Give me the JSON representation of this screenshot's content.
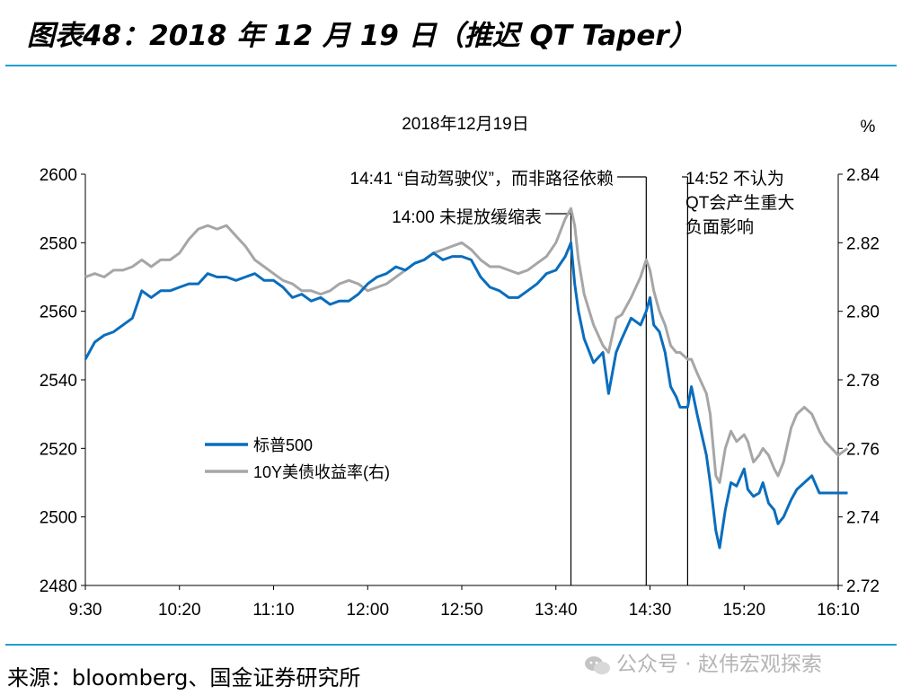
{
  "figure_title": "图表48：2018 年 12 月 19 日（推迟 QT Taper）",
  "source": "来源：bloomberg、国金证券研究所",
  "watermark": "公众号 · 赵伟宏观探索",
  "watermark_icon": "wechat-icon",
  "colors": {
    "sp500": "#0a6dbd",
    "treasury": "#a6a6a6",
    "rule": "#1fa0d2"
  },
  "chart_data": {
    "type": "line",
    "title": "2018年12月19日",
    "y2_unit": "%",
    "x_ticks": [
      "9:30",
      "10:20",
      "11:10",
      "12:00",
      "12:50",
      "13:40",
      "14:30",
      "15:20",
      "16:10"
    ],
    "y_left": {
      "ticks": [
        2480,
        2500,
        2520,
        2540,
        2560,
        2580,
        2600
      ],
      "range": [
        2480,
        2600
      ]
    },
    "y_right": {
      "ticks": [
        "2.72",
        "2.74",
        "2.76",
        "2.78",
        "2.80",
        "2.82",
        "2.84"
      ],
      "range": [
        2.72,
        2.84
      ]
    },
    "grid": false,
    "legend_position": "lower-left",
    "series": [
      {
        "name": "标普500",
        "axis": "left",
        "points": [
          [
            "9:30",
            2546
          ],
          [
            "9:35",
            2551
          ],
          [
            "9:40",
            2553
          ],
          [
            "9:45",
            2554
          ],
          [
            "9:50",
            2556
          ],
          [
            "9:55",
            2558
          ],
          [
            "10:00",
            2566
          ],
          [
            "10:05",
            2564
          ],
          [
            "10:10",
            2566
          ],
          [
            "10:15",
            2566
          ],
          [
            "10:20",
            2567
          ],
          [
            "10:25",
            2568
          ],
          [
            "10:30",
            2568
          ],
          [
            "10:35",
            2571
          ],
          [
            "10:40",
            2570
          ],
          [
            "10:45",
            2570
          ],
          [
            "10:50",
            2569
          ],
          [
            "10:55",
            2570
          ],
          [
            "11:00",
            2571
          ],
          [
            "11:05",
            2569
          ],
          [
            "11:10",
            2569
          ],
          [
            "11:15",
            2567
          ],
          [
            "11:20",
            2564
          ],
          [
            "11:25",
            2565
          ],
          [
            "11:30",
            2563
          ],
          [
            "11:35",
            2564
          ],
          [
            "11:40",
            2562
          ],
          [
            "11:45",
            2563
          ],
          [
            "11:50",
            2563
          ],
          [
            "11:55",
            2565
          ],
          [
            "12:00",
            2568
          ],
          [
            "12:05",
            2570
          ],
          [
            "12:10",
            2571
          ],
          [
            "12:15",
            2573
          ],
          [
            "12:20",
            2572
          ],
          [
            "12:25",
            2574
          ],
          [
            "12:30",
            2575
          ],
          [
            "12:35",
            2577
          ],
          [
            "12:40",
            2575
          ],
          [
            "12:45",
            2576
          ],
          [
            "12:50",
            2576
          ],
          [
            "12:55",
            2575
          ],
          [
            "13:00",
            2570
          ],
          [
            "13:05",
            2567
          ],
          [
            "13:10",
            2566
          ],
          [
            "13:15",
            2564
          ],
          [
            "13:20",
            2564
          ],
          [
            "13:25",
            2566
          ],
          [
            "13:30",
            2568
          ],
          [
            "13:35",
            2571
          ],
          [
            "13:40",
            2572
          ],
          [
            "13:45",
            2576
          ],
          [
            "13:48",
            2580
          ],
          [
            "13:50",
            2568
          ],
          [
            "13:52",
            2560
          ],
          [
            "13:55",
            2552
          ],
          [
            "14:00",
            2545
          ],
          [
            "14:05",
            2548
          ],
          [
            "14:08",
            2536
          ],
          [
            "14:12",
            2548
          ],
          [
            "14:15",
            2552
          ],
          [
            "14:20",
            2558
          ],
          [
            "14:25",
            2556
          ],
          [
            "14:28",
            2560
          ],
          [
            "14:30",
            2564
          ],
          [
            "14:32",
            2556
          ],
          [
            "14:35",
            2554
          ],
          [
            "14:38",
            2548
          ],
          [
            "14:41",
            2538
          ],
          [
            "14:44",
            2535
          ],
          [
            "14:46",
            2532
          ],
          [
            "14:50",
            2532
          ],
          [
            "14:52",
            2538
          ],
          [
            "14:55",
            2530
          ],
          [
            "15:00",
            2518
          ],
          [
            "15:02",
            2510
          ],
          [
            "15:05",
            2496
          ],
          [
            "15:07",
            2491
          ],
          [
            "15:10",
            2502
          ],
          [
            "15:13",
            2510
          ],
          [
            "15:16",
            2509
          ],
          [
            "15:20",
            2514
          ],
          [
            "15:22",
            2508
          ],
          [
            "15:25",
            2506
          ],
          [
            "15:28",
            2507
          ],
          [
            "15:30",
            2510
          ],
          [
            "15:33",
            2504
          ],
          [
            "15:36",
            2502
          ],
          [
            "15:38",
            2498
          ],
          [
            "15:41",
            2500
          ],
          [
            "15:45",
            2505
          ],
          [
            "15:48",
            2508
          ],
          [
            "15:52",
            2510
          ],
          [
            "15:56",
            2512
          ],
          [
            "16:00",
            2507
          ],
          [
            "16:03",
            2507
          ],
          [
            "16:10",
            2507
          ],
          [
            "16:15",
            2507
          ]
        ]
      },
      {
        "name": "10Y美债收益率(右)",
        "axis": "right",
        "points": [
          [
            "9:30",
            2.81
          ],
          [
            "9:35",
            2.811
          ],
          [
            "9:40",
            2.81
          ],
          [
            "9:45",
            2.812
          ],
          [
            "9:50",
            2.812
          ],
          [
            "9:55",
            2.813
          ],
          [
            "10:00",
            2.815
          ],
          [
            "10:05",
            2.813
          ],
          [
            "10:10",
            2.815
          ],
          [
            "10:15",
            2.815
          ],
          [
            "10:20",
            2.817
          ],
          [
            "10:25",
            2.821
          ],
          [
            "10:30",
            2.824
          ],
          [
            "10:35",
            2.825
          ],
          [
            "10:40",
            2.824
          ],
          [
            "10:45",
            2.825
          ],
          [
            "10:50",
            2.822
          ],
          [
            "10:55",
            2.819
          ],
          [
            "11:00",
            2.815
          ],
          [
            "11:05",
            2.813
          ],
          [
            "11:10",
            2.811
          ],
          [
            "11:15",
            2.809
          ],
          [
            "11:20",
            2.808
          ],
          [
            "11:25",
            2.806
          ],
          [
            "11:30",
            2.806
          ],
          [
            "11:35",
            2.805
          ],
          [
            "11:40",
            2.806
          ],
          [
            "11:45",
            2.808
          ],
          [
            "11:50",
            2.809
          ],
          [
            "11:55",
            2.808
          ],
          [
            "12:00",
            2.806
          ],
          [
            "12:05",
            2.807
          ],
          [
            "12:10",
            2.808
          ],
          [
            "12:15",
            2.81
          ],
          [
            "12:20",
            2.812
          ],
          [
            "12:25",
            2.814
          ],
          [
            "12:30",
            2.815
          ],
          [
            "12:35",
            2.817
          ],
          [
            "12:40",
            2.818
          ],
          [
            "12:45",
            2.819
          ],
          [
            "12:50",
            2.82
          ],
          [
            "12:55",
            2.818
          ],
          [
            "13:00",
            2.815
          ],
          [
            "13:05",
            2.813
          ],
          [
            "13:10",
            2.813
          ],
          [
            "13:15",
            2.812
          ],
          [
            "13:20",
            2.811
          ],
          [
            "13:25",
            2.812
          ],
          [
            "13:30",
            2.814
          ],
          [
            "13:35",
            2.816
          ],
          [
            "13:40",
            2.82
          ],
          [
            "13:45",
            2.827
          ],
          [
            "13:48",
            2.83
          ],
          [
            "13:50",
            2.825
          ],
          [
            "13:52",
            2.815
          ],
          [
            "13:55",
            2.805
          ],
          [
            "14:00",
            2.796
          ],
          [
            "14:05",
            2.79
          ],
          [
            "14:08",
            2.788
          ],
          [
            "14:12",
            2.798
          ],
          [
            "14:15",
            2.799
          ],
          [
            "14:20",
            2.804
          ],
          [
            "14:25",
            2.81
          ],
          [
            "14:28",
            2.815
          ],
          [
            "14:30",
            2.812
          ],
          [
            "14:32",
            2.806
          ],
          [
            "14:35",
            2.8
          ],
          [
            "14:38",
            2.796
          ],
          [
            "14:41",
            2.79
          ],
          [
            "14:44",
            2.788
          ],
          [
            "14:46",
            2.788
          ],
          [
            "14:50",
            2.786
          ],
          [
            "14:52",
            2.786
          ],
          [
            "14:55",
            2.782
          ],
          [
            "15:00",
            2.776
          ],
          [
            "15:02",
            2.77
          ],
          [
            "15:05",
            2.752
          ],
          [
            "15:07",
            2.75
          ],
          [
            "15:10",
            2.76
          ],
          [
            "15:13",
            2.765
          ],
          [
            "15:16",
            2.762
          ],
          [
            "15:20",
            2.764
          ],
          [
            "15:22",
            2.762
          ],
          [
            "15:25",
            2.756
          ],
          [
            "15:28",
            2.758
          ],
          [
            "15:30",
            2.76
          ],
          [
            "15:33",
            2.758
          ],
          [
            "15:36",
            2.754
          ],
          [
            "15:38",
            2.752
          ],
          [
            "15:41",
            2.756
          ],
          [
            "15:45",
            2.766
          ],
          [
            "15:48",
            2.77
          ],
          [
            "15:52",
            2.772
          ],
          [
            "15:56",
            2.77
          ],
          [
            "16:00",
            2.765
          ],
          [
            "16:03",
            2.762
          ],
          [
            "16:10",
            2.758
          ],
          [
            "16:15",
            2.76
          ]
        ]
      }
    ],
    "annotations": [
      {
        "time": "13:48",
        "lines": [
          "14:00 未提放缓缩表"
        ]
      },
      {
        "time": "14:28",
        "lines": [
          "14:41 “自动驾驶仪”，而非路径依赖"
        ]
      },
      {
        "time": "14:50",
        "lines": [
          "14:52 不认为",
          "QT会产生重大",
          "负面影响"
        ]
      }
    ]
  }
}
